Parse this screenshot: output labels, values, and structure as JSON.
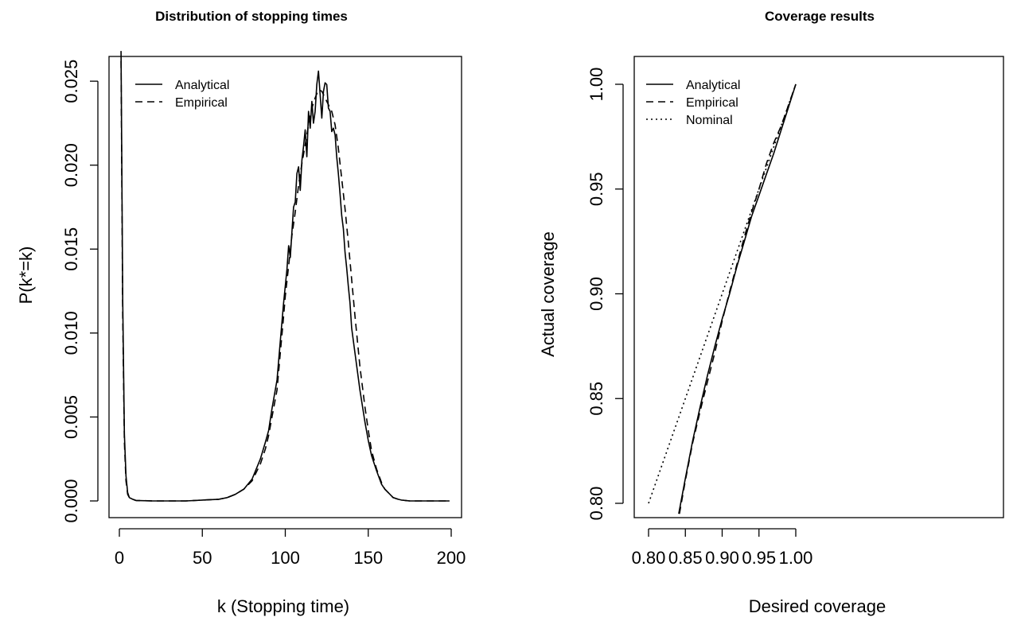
{
  "chart_data": [
    {
      "type": "line",
      "title": "Distribution of stopping times",
      "xlabel": "k (Stopping time)",
      "ylabel": "P(k*=k)",
      "xlim": [
        0,
        200
      ],
      "ylim": [
        0,
        0.026
      ],
      "xticks": [
        "0",
        "50",
        "100",
        "150",
        "200"
      ],
      "yticks": [
        "0.000",
        "0.005",
        "0.010",
        "0.015",
        "0.020",
        "0.025"
      ],
      "grid": false,
      "legend": {
        "position": "top-left",
        "entries": [
          "Analytical",
          "Empirical"
        ]
      },
      "series": [
        {
          "name": "Analytical",
          "line_style": "solid",
          "x": [
            1,
            2,
            3,
            4,
            5,
            6,
            8,
            10,
            20,
            40,
            60,
            65,
            70,
            75,
            80,
            85,
            88,
            90,
            92,
            95,
            97,
            99,
            100,
            101,
            102,
            103,
            104,
            105,
            106,
            107,
            108,
            109,
            110,
            111,
            112,
            113,
            114,
            115,
            116,
            117,
            118,
            119,
            120,
            121,
            122,
            123,
            124,
            125,
            126,
            127,
            128,
            129,
            130,
            131,
            132,
            133,
            134,
            135,
            136,
            137,
            138,
            139,
            140,
            142,
            145,
            148,
            150,
            152,
            155,
            158,
            160,
            163,
            165,
            168,
            170,
            175,
            180,
            190,
            199
          ],
          "y": [
            0.0268,
            0.012,
            0.004,
            0.0015,
            0.0005,
            0.0002,
            0.0001,
            3e-05,
            0.0,
            0.0,
            0.0001,
            0.0002,
            0.0004,
            0.0007,
            0.0013,
            0.0025,
            0.0035,
            0.0042,
            0.0055,
            0.0072,
            0.0095,
            0.0118,
            0.0128,
            0.0138,
            0.0152,
            0.0145,
            0.016,
            0.0175,
            0.0178,
            0.0195,
            0.0199,
            0.0185,
            0.0203,
            0.0211,
            0.0221,
            0.0205,
            0.0232,
            0.0222,
            0.0238,
            0.0225,
            0.0232,
            0.0248,
            0.0256,
            0.0242,
            0.0228,
            0.0244,
            0.0249,
            0.0248,
            0.0234,
            0.0232,
            0.022,
            0.0222,
            0.0218,
            0.0205,
            0.0195,
            0.0183,
            0.017,
            0.0162,
            0.0148,
            0.0139,
            0.0128,
            0.0118,
            0.0103,
            0.0088,
            0.0066,
            0.0047,
            0.0036,
            0.0027,
            0.0018,
            0.001,
            0.0007,
            0.0004,
            0.0002,
            0.0001,
            5e-05,
            0.0,
            0.0,
            0.0,
            0.0
          ]
        },
        {
          "name": "Empirical",
          "line_style": "dashed",
          "x": [
            1,
            2,
            3,
            4,
            5,
            6,
            8,
            10,
            20,
            40,
            60,
            65,
            70,
            75,
            80,
            85,
            88,
            90,
            92,
            95,
            97,
            99,
            100,
            102,
            104,
            106,
            108,
            110,
            112,
            114,
            116,
            118,
            120,
            122,
            124,
            126,
            128,
            130,
            132,
            134,
            136,
            138,
            140,
            142,
            145,
            148,
            150,
            152,
            155,
            158,
            160,
            163,
            165,
            168,
            170,
            175,
            180,
            190,
            199
          ],
          "y": [
            0.0262,
            0.011,
            0.0035,
            0.0012,
            0.0004,
            0.0002,
            0.0001,
            3e-05,
            0.0,
            0.0,
            0.0001,
            0.0002,
            0.0004,
            0.0007,
            0.0012,
            0.0022,
            0.0031,
            0.0039,
            0.005,
            0.0066,
            0.0088,
            0.011,
            0.0122,
            0.014,
            0.0158,
            0.0172,
            0.0188,
            0.0201,
            0.0212,
            0.0224,
            0.0234,
            0.024,
            0.0245,
            0.0244,
            0.024,
            0.0236,
            0.0232,
            0.0224,
            0.021,
            0.0192,
            0.0174,
            0.0154,
            0.0132,
            0.011,
            0.008,
            0.0056,
            0.0042,
            0.003,
            0.0019,
            0.0011,
            0.0007,
            0.0004,
            0.0002,
            0.0001,
            5e-05,
            0.0,
            0.0,
            0.0,
            0.0
          ]
        }
      ]
    },
    {
      "type": "line",
      "title": "Coverage results",
      "xlabel": "Desired coverage",
      "ylabel": "Actual coverage",
      "xlim": [
        0.8,
        1.0
      ],
      "ylim": [
        0.8,
        1.0
      ],
      "xticks": [
        "0.80",
        "0.85",
        "0.90",
        "0.95",
        "1.00"
      ],
      "yticks": [
        "0.80",
        "0.85",
        "0.90",
        "0.95",
        "1.00"
      ],
      "grid": false,
      "legend": {
        "position": "top-left",
        "entries": [
          "Analytical",
          "Empirical",
          "Nominal"
        ]
      },
      "series": [
        {
          "name": "Analytical",
          "line_style": "solid",
          "x": [
            0.841,
            0.85,
            0.86,
            0.87,
            0.88,
            0.89,
            0.9,
            0.91,
            0.92,
            0.93,
            0.94,
            0.95,
            0.96,
            0.97,
            0.98,
            0.99,
            1.0
          ],
          "y": [
            0.795,
            0.812,
            0.83,
            0.846,
            0.861,
            0.875,
            0.888,
            0.9,
            0.913,
            0.925,
            0.937,
            0.947,
            0.957,
            0.967,
            0.978,
            0.989,
            1.0
          ],
          "visible_y_min": 0.795
        },
        {
          "name": "Empirical",
          "line_style": "dashed",
          "x": [
            0.842,
            0.85,
            0.86,
            0.87,
            0.88,
            0.89,
            0.9,
            0.91,
            0.92,
            0.93,
            0.94,
            0.95,
            0.96,
            0.97,
            0.98,
            0.99,
            1.0
          ],
          "y": [
            0.795,
            0.811,
            0.829,
            0.844,
            0.858,
            0.872,
            0.887,
            0.901,
            0.914,
            0.927,
            0.939,
            0.95,
            0.962,
            0.972,
            0.98,
            0.99,
            1.0
          ],
          "visible_y_min": 0.795
        },
        {
          "name": "Nominal",
          "line_style": "dotted",
          "x": [
            0.8,
            1.0
          ],
          "y": [
            0.8,
            1.0
          ],
          "visible_y_min": 0.8
        }
      ]
    }
  ]
}
